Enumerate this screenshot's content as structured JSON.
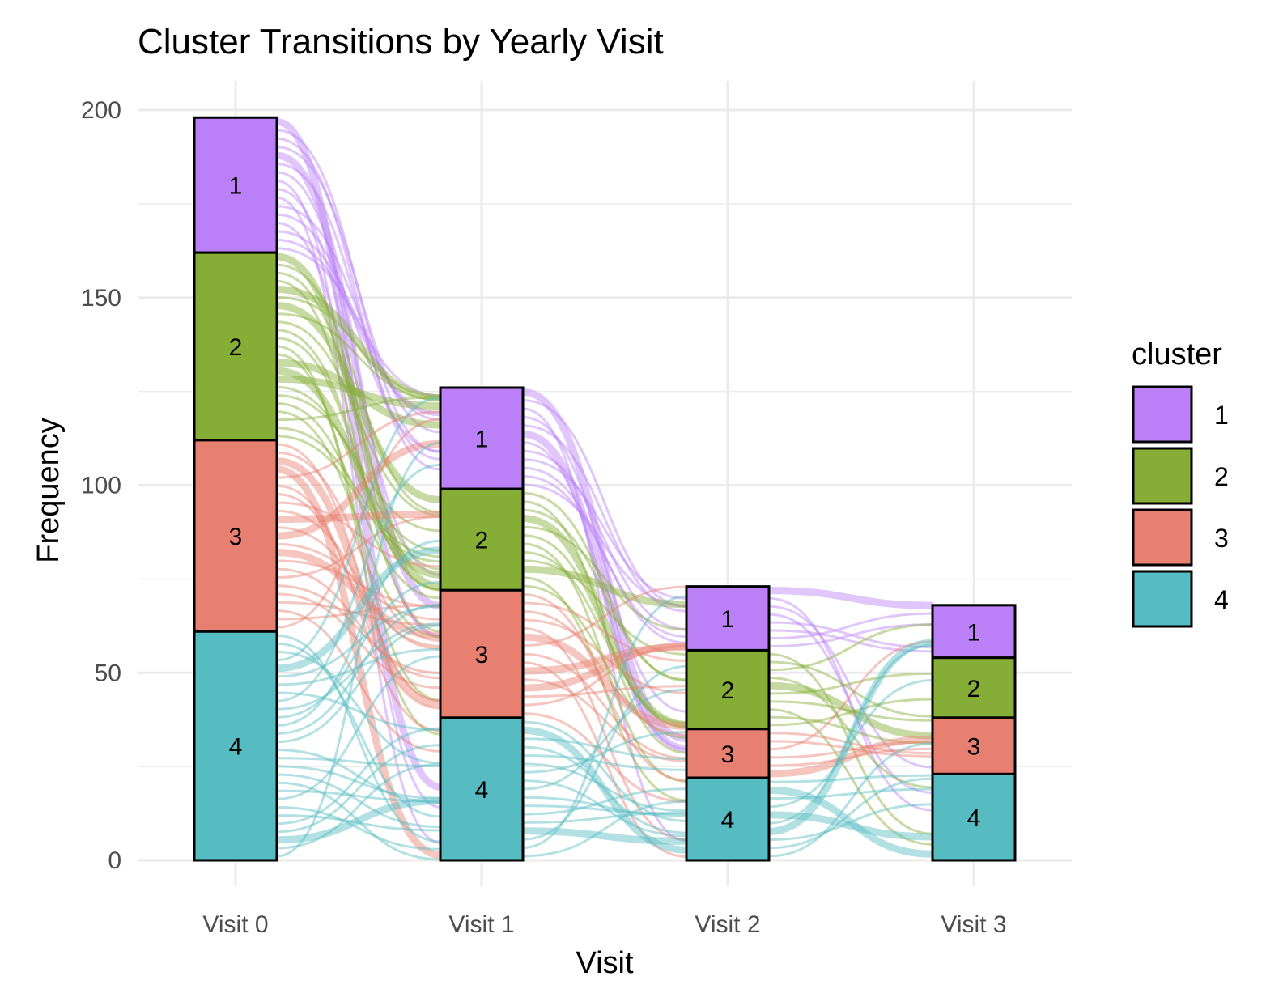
{
  "chart_data": {
    "type": "alluvial",
    "title": "Cluster Transitions by Yearly Visit",
    "xlabel": "Visit",
    "ylabel": "Frequency",
    "categories": [
      "Visit 0",
      "Visit 1",
      "Visit 2",
      "Visit 3"
    ],
    "ylim": [
      0,
      200
    ],
    "yticks": [
      0,
      50,
      100,
      150,
      200
    ],
    "grid": true,
    "legend": {
      "title": "cluster",
      "position": "right",
      "items": [
        {
          "label": "1",
          "color": "#BB80F7"
        },
        {
          "label": "2",
          "color": "#86AD36"
        },
        {
          "label": "3",
          "color": "#E88072"
        },
        {
          "label": "4",
          "color": "#56BCC2"
        }
      ]
    },
    "series": [
      {
        "name": "1",
        "values": [
          36,
          27,
          17,
          14
        ]
      },
      {
        "name": "2",
        "values": [
          50,
          27,
          21,
          16
        ]
      },
      {
        "name": "3",
        "values": [
          51,
          34,
          13,
          15
        ]
      },
      {
        "name": "4",
        "values": [
          61,
          38,
          22,
          23
        ]
      }
    ]
  }
}
